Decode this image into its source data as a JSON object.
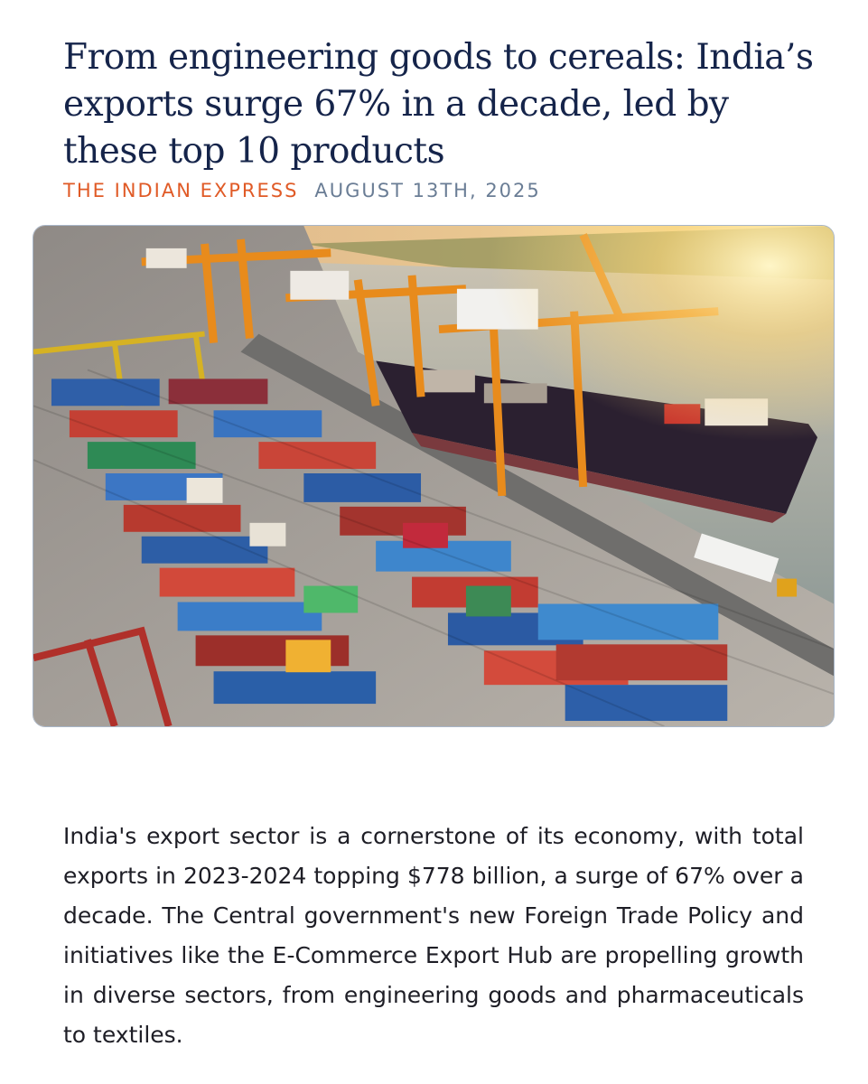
{
  "article": {
    "headline": "From engineering goods to cereals: India’s exports surge 67% in a decade, led by these top 10 products",
    "source": "THE INDIAN EXPRESS",
    "date": "AUGUST 13TH, 2025",
    "image": {
      "subject": "aerial view of container port with cranes and cargo ship"
    },
    "body": "India's export sector is a cornerstone of its economy, with total exports in 2023-2024 topping $778 billion, a surge of 67% over a decade. The Central government's new Foreign Trade Policy and initiatives like the E-Commerce Export Hub are propelling growth in diverse sectors, from engineering goods and pharmaceuticals to textiles."
  },
  "colors": {
    "headline": "#15244a",
    "source": "#e05a26",
    "date": "#6a7d95",
    "body": "#1e1e26"
  }
}
